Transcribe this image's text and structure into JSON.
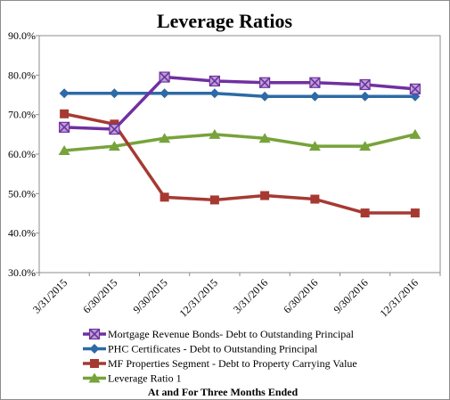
{
  "chart_data": {
    "type": "line",
    "title": "Leverage Ratios",
    "xlabel": "At and For Three Months Ended",
    "ylabel": "",
    "categories": [
      "3/31/2015",
      "6/30/2015",
      "9/30/2015",
      "12/31/2015",
      "3/31/2016",
      "6/30/2016",
      "9/30/2016",
      "12/31/2016"
    ],
    "ylim": [
      30,
      90
    ],
    "yticks": [
      30,
      40,
      50,
      60,
      70,
      80,
      90
    ],
    "ytick_labels": [
      "30.0%",
      "40.0%",
      "50.0%",
      "60.0%",
      "70.0%",
      "80.0%",
      "90.0%"
    ],
    "grid": false,
    "legend_position": "bottom",
    "series": [
      {
        "name": "Mortgage Revenue Bonds- Debt to Outstanding Principal",
        "color": "#7030a0",
        "marker": "x-square",
        "values": [
          66.8,
          66.3,
          79.5,
          78.5,
          78.1,
          78.1,
          77.6,
          76.5
        ]
      },
      {
        "name": "PHC Certificates - Debt to Outstanding Principal",
        "color": "#2e6aa6",
        "marker": "diamond",
        "values": [
          75.4,
          75.4,
          75.4,
          75.4,
          74.6,
          74.6,
          74.6,
          74.6
        ]
      },
      {
        "name": "MF Properties Segment - Debt to Property Carrying Value",
        "color": "#a63a32",
        "marker": "square",
        "values": [
          70.2,
          67.6,
          49.1,
          48.4,
          49.5,
          48.6,
          45.1,
          45.1
        ]
      },
      {
        "name": "Leverage Ratio 1",
        "color": "#77a33b",
        "marker": "triangle",
        "values": [
          60.9,
          62.0,
          64.0,
          65.0,
          64.0,
          62.0,
          62.0,
          65.0
        ]
      }
    ]
  }
}
